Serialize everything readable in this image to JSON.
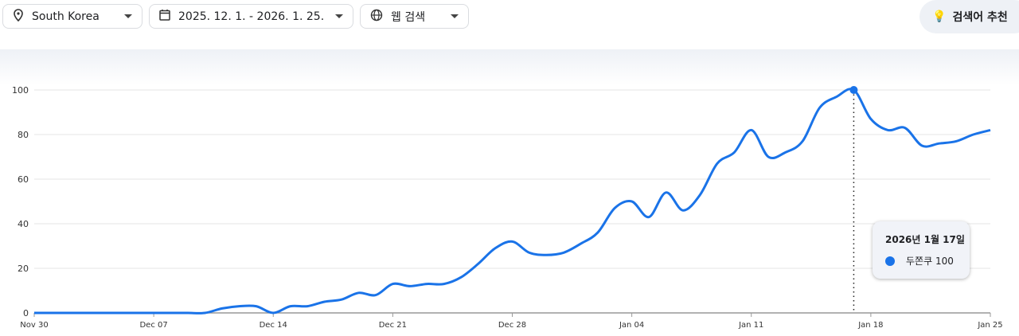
{
  "filters": {
    "region": {
      "label": "South Korea",
      "icon": "location-pin-icon"
    },
    "date_range": {
      "label": "2025. 12. 1. - 2026. 1. 25.",
      "icon": "calendar-icon"
    },
    "search_type": {
      "label": "웹 검색",
      "icon": "globe-icon"
    }
  },
  "suggest_button": {
    "label": "검색어 추천",
    "icon": "lightbulb-sparkle-icon"
  },
  "tooltip": {
    "date": "2026년 1월 17일",
    "term": "두쫀쿠",
    "value": "100"
  },
  "colors": {
    "line": "#1a73e8"
  },
  "chart_data": {
    "type": "line",
    "x_tick_labels": [
      "Nov 30",
      "Dec 07",
      "Dec 14",
      "Dec 21",
      "Dec 28",
      "Jan 04",
      "Jan 11",
      "Jan 18",
      "Jan 25"
    ],
    "y_tick_labels": [
      "0",
      "20",
      "40",
      "60",
      "80",
      "100"
    ],
    "ylim": [
      0,
      100
    ],
    "grid": true,
    "x_start": "2025-11-30",
    "x_end": "2026-01-25",
    "highlight_date": "2026-01-17",
    "series": [
      {
        "name": "두쫀쿠",
        "values": [
          0,
          0,
          0,
          0,
          0,
          0,
          0,
          0,
          0,
          0,
          0,
          2,
          3,
          3,
          0,
          3,
          3,
          5,
          6,
          9,
          8,
          13,
          12,
          13,
          13,
          16,
          22,
          29,
          32,
          27,
          26,
          27,
          31,
          36,
          47,
          50,
          43,
          54,
          46,
          53,
          67,
          72,
          82,
          70,
          72,
          77,
          92,
          97,
          100,
          87,
          82,
          83,
          75,
          76,
          77,
          80,
          82
        ]
      }
    ]
  }
}
